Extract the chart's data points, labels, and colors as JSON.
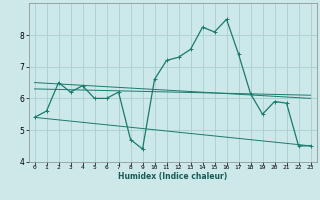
{
  "xlabel": "Humidex (Indice chaleur)",
  "ylabel": "",
  "bg_color": "#cce8e8",
  "grid_color": "#a8d0d0",
  "line_color": "#1a7a6e",
  "xlim": [
    -0.5,
    23.5
  ],
  "ylim": [
    4,
    9
  ],
  "yticks": [
    4,
    5,
    6,
    7,
    8
  ],
  "xticks": [
    0,
    1,
    2,
    3,
    4,
    5,
    6,
    7,
    8,
    9,
    10,
    11,
    12,
    13,
    14,
    15,
    16,
    17,
    18,
    19,
    20,
    21,
    22,
    23
  ],
  "series": [
    {
      "x": [
        0,
        1,
        2,
        3,
        4,
        5,
        6,
        7,
        8,
        9,
        10,
        11,
        12,
        13,
        14,
        15,
        16,
        17,
        18,
        19,
        20,
        21,
        22,
        23
      ],
      "y": [
        5.4,
        5.6,
        6.5,
        6.2,
        6.4,
        6.0,
        6.0,
        6.2,
        4.7,
        4.4,
        6.6,
        7.2,
        7.3,
        7.55,
        8.25,
        8.1,
        8.5,
        7.4,
        6.15,
        5.5,
        5.9,
        5.85,
        4.5,
        4.5
      ]
    },
    {
      "x": [
        0,
        23
      ],
      "y": [
        6.5,
        6.0
      ]
    },
    {
      "x": [
        0,
        23
      ],
      "y": [
        6.3,
        6.1
      ]
    },
    {
      "x": [
        0,
        23
      ],
      "y": [
        5.4,
        4.5
      ]
    }
  ]
}
